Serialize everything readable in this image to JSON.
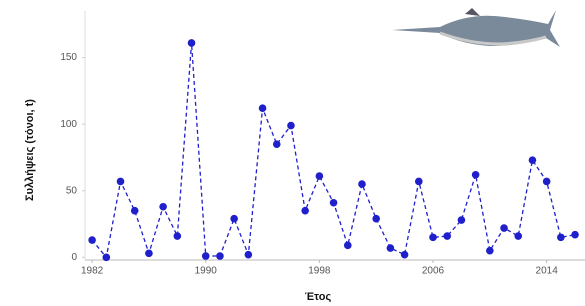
{
  "chart_data": {
    "type": "line",
    "x_label": "Έτος",
    "y_label": "Συλλήψεις (τόνοι, t)",
    "x": [
      1982,
      1983,
      1984,
      1985,
      1986,
      1987,
      1988,
      1989,
      1990,
      1991,
      1992,
      1993,
      1994,
      1995,
      1996,
      1997,
      1998,
      1999,
      2000,
      2001,
      2002,
      2003,
      2004,
      2005,
      2006,
      2007,
      2008,
      2009,
      2010,
      2011,
      2012,
      2013,
      2014,
      2015,
      2016
    ],
    "values": [
      13,
      0,
      57,
      35,
      3,
      38,
      16,
      161,
      1,
      1,
      29,
      2,
      112,
      85,
      99,
      35,
      61,
      41,
      9,
      55,
      29,
      7,
      2,
      57,
      15,
      16,
      28,
      62,
      5,
      22,
      16,
      73,
      57,
      15,
      17
    ],
    "color": "#1f1fcc",
    "dashed": true,
    "xlim": [
      1981.5,
      2016.7
    ],
    "xticks": [
      1982,
      1990,
      1998,
      2006,
      2014
    ],
    "ylim": [
      -2,
      185
    ],
    "yticks": [
      0,
      50,
      100,
      150
    ]
  }
}
